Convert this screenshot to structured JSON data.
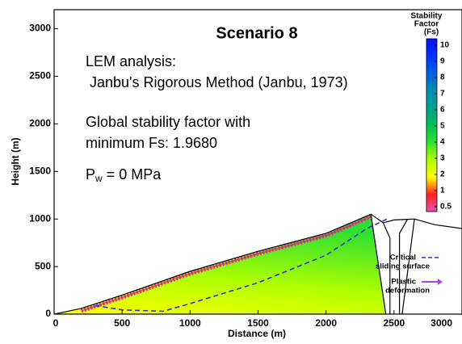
{
  "chart_data": {
    "type": "slope",
    "title": "Scenario 8",
    "annotations": [
      "LEM analysis:",
      " Janbu's Rigorous Method (Janbu, 1973)",
      "Global stability factor with",
      "minimum Fs: 1.9680"
    ],
    "pressure_label": {
      "base": "P",
      "sub": "w",
      "rest": " = 0 MPa"
    },
    "xlabel": "Distance (m)",
    "ylabel": "Height (m)",
    "xlim": [
      0,
      3000
    ],
    "ylim": [
      0,
      3200
    ],
    "xticks": [
      0,
      500,
      1000,
      1500,
      2000,
      2500,
      3000
    ],
    "yticks": [
      0,
      500,
      1000,
      1500,
      2000,
      2500,
      3000
    ],
    "terrain": {
      "color": "#000000",
      "x": [
        0,
        200,
        500,
        1000,
        1500,
        2000,
        2330,
        2420,
        2500,
        2650,
        2800,
        3000
      ],
      "y": [
        0,
        60,
        200,
        450,
        660,
        850,
        1050,
        960,
        990,
        1000,
        940,
        900
      ]
    },
    "block_boundaries": {
      "color": "#000000",
      "x": [
        2330,
        2440,
        null,
        2420,
        2470,
        2470,
        null,
        2540,
        2540,
        2600,
        null,
        2650,
        2560
      ],
      "y": [
        1050,
        0,
        null,
        960,
        800,
        0,
        null,
        0,
        850,
        1000,
        null,
        1000,
        0
      ]
    },
    "series": [
      {
        "name": [
          "Critical",
          "sliding surface"
        ],
        "color": "#3030d0",
        "x": [
          300,
          500,
          800,
          1000,
          1500,
          2000,
          2300,
          2450
        ],
        "y": [
          90,
          45,
          30,
          110,
          330,
          620,
          900,
          1000
        ]
      },
      {
        "name": [
          "Plastic",
          "deformation"
        ],
        "color": "#b040e0"
      }
    ],
    "colorbar": {
      "title": [
        "Stability",
        "Factor",
        "(Fs)"
      ],
      "ticks": [
        0.5,
        1,
        2,
        3,
        4,
        5,
        6,
        7,
        8,
        9,
        10
      ],
      "colors": [
        "#e050b0",
        "#ff2020",
        "#ffff00",
        "#b0ff00",
        "#30e030",
        "#00c050",
        "#00a090",
        "#0090b0",
        "#0060e0",
        "#0030ff",
        "#0010ff"
      ]
    }
  }
}
